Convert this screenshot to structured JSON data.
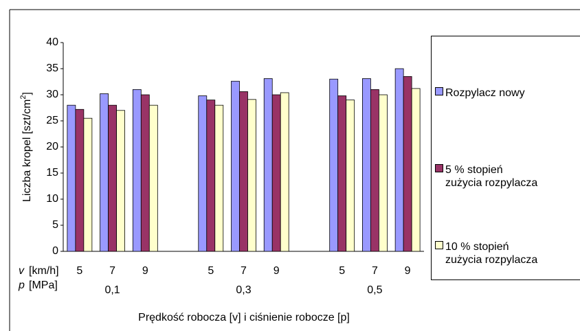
{
  "chart_data": {
    "type": "bar",
    "y_label": {
      "text": "Liczba kropel [szt/cm",
      "sup": "2",
      "end": "]"
    },
    "x_label": "Prędkość robocza [v] i ciśnienie robocze [p]",
    "row_labels": [
      {
        "symbol": "v",
        "unit": "[km/h]"
      },
      {
        "symbol": "p",
        "unit": "[MPa]"
      }
    ],
    "pressures": [
      "0,1",
      "0,3",
      "0,5"
    ],
    "categories": [
      "5",
      "7",
      "9",
      null,
      "5",
      "7",
      "9",
      null,
      "5",
      "7",
      "9"
    ],
    "series": [
      {
        "name": "Rozpylacz nowy",
        "color": "#9999ff",
        "values": [
          28,
          30.2,
          31,
          null,
          29.8,
          32.6,
          33.1,
          null,
          33,
          33.1,
          35
        ]
      },
      {
        "name": "5 % stopień zużycia rozpylacza",
        "color": "#993366",
        "values": [
          27.2,
          28,
          30,
          null,
          29,
          30.6,
          30,
          null,
          29.8,
          31,
          33.5
        ]
      },
      {
        "name": "10 % stopień zużycia rozpylacza",
        "color": "#ffffcc",
        "values": [
          25.5,
          27,
          28,
          null,
          28,
          29.1,
          30.4,
          null,
          29,
          30,
          31.2
        ]
      }
    ],
    "ylim": [
      0,
      40
    ],
    "yticks": [
      0,
      5,
      10,
      15,
      20,
      25,
      30,
      35,
      40
    ]
  }
}
